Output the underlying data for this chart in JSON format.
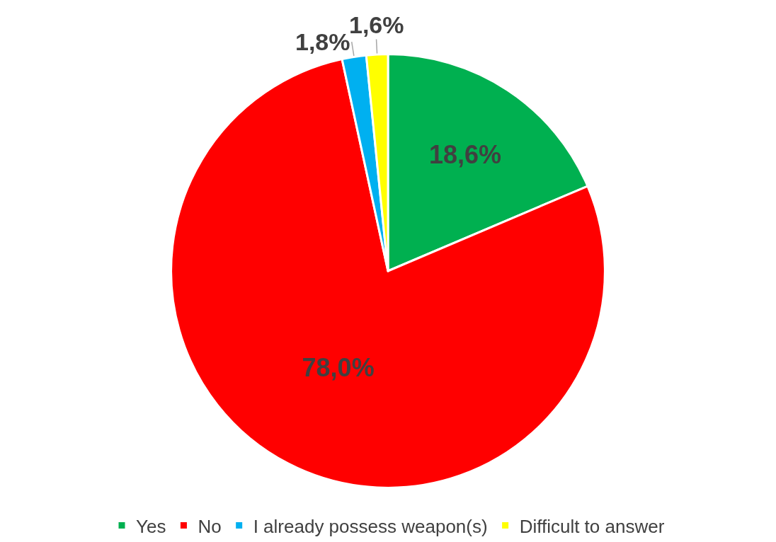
{
  "chart_data": {
    "type": "pie",
    "categories": [
      "Yes",
      "No",
      "I already possess weapon(s)",
      "Difficult to answer"
    ],
    "values": [
      18.6,
      78.0,
      1.8,
      1.6
    ],
    "value_labels": [
      "18,6%",
      "78,0%",
      "1,8%",
      "1,6%"
    ],
    "colors": [
      "#00b050",
      "#ff0000",
      "#00b0f0",
      "#ffff00"
    ],
    "legend": "bottom"
  }
}
